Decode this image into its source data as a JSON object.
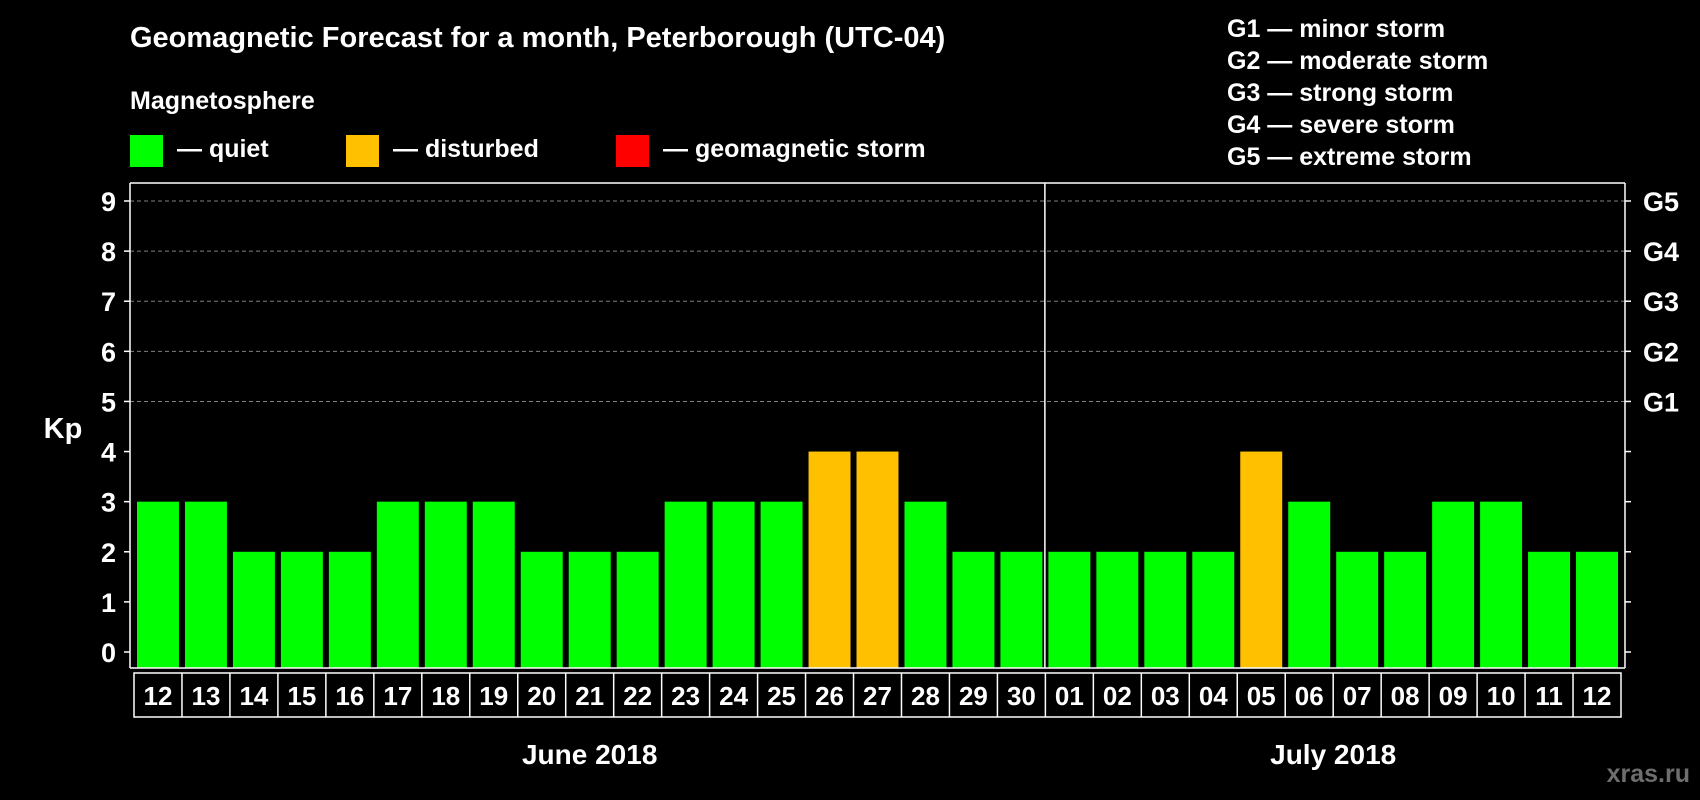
{
  "chart_data": {
    "type": "bar",
    "title": "Geomagnetic Forecast for a month, Peterborough (UTC-04)",
    "ylabel": "Kp",
    "ylim": [
      0,
      9
    ],
    "yticks": [
      0,
      1,
      2,
      3,
      4,
      5,
      6,
      7,
      8,
      9
    ],
    "grid": "dashed horizontal lines at Kp 5–9",
    "legend": {
      "title": "Magnetosphere",
      "items": [
        {
          "label": "— quiet",
          "color": "#00ff00"
        },
        {
          "label": "— disturbed",
          "color": "#ffc000"
        },
        {
          "label": "— geomagnetic storm",
          "color": "#ff0000"
        }
      ]
    },
    "storm_scale": [
      "G1 — minor storm",
      "G2 — moderate storm",
      "G3 — strong storm",
      "G4 — severe storm",
      "G5 — extreme storm"
    ],
    "right_axis_labels": [
      {
        "kp": 5,
        "label": "G1"
      },
      {
        "kp": 6,
        "label": "G2"
      },
      {
        "kp": 7,
        "label": "G3"
      },
      {
        "kp": 8,
        "label": "G4"
      },
      {
        "kp": 9,
        "label": "G5"
      }
    ],
    "categories": [
      "12",
      "13",
      "14",
      "15",
      "16",
      "17",
      "18",
      "19",
      "20",
      "21",
      "22",
      "23",
      "24",
      "25",
      "26",
      "27",
      "28",
      "29",
      "30",
      "01",
      "02",
      "03",
      "04",
      "05",
      "06",
      "07",
      "08",
      "09",
      "10",
      "11",
      "12"
    ],
    "values": [
      3,
      3,
      2,
      2,
      2,
      3,
      3,
      3,
      2,
      2,
      2,
      3,
      3,
      3,
      4,
      4,
      3,
      2,
      2,
      2,
      2,
      2,
      2,
      4,
      3,
      2,
      2,
      3,
      3,
      2,
      2
    ],
    "bar_status": [
      "quiet",
      "quiet",
      "quiet",
      "quiet",
      "quiet",
      "quiet",
      "quiet",
      "quiet",
      "quiet",
      "quiet",
      "quiet",
      "quiet",
      "quiet",
      "quiet",
      "disturbed",
      "disturbed",
      "quiet",
      "quiet",
      "quiet",
      "quiet",
      "quiet",
      "quiet",
      "quiet",
      "disturbed",
      "quiet",
      "quiet",
      "quiet",
      "quiet",
      "quiet",
      "quiet",
      "quiet"
    ],
    "months": [
      {
        "label": "June 2018",
        "days": 19
      },
      {
        "label": "July 2018",
        "days": 12
      }
    ]
  },
  "colors": {
    "quiet": "#00ff00",
    "disturbed": "#ffc000",
    "storm": "#ff0000",
    "background": "#000000",
    "axis": "#ffffff",
    "grid": "#808080"
  },
  "watermark": "xras.ru"
}
